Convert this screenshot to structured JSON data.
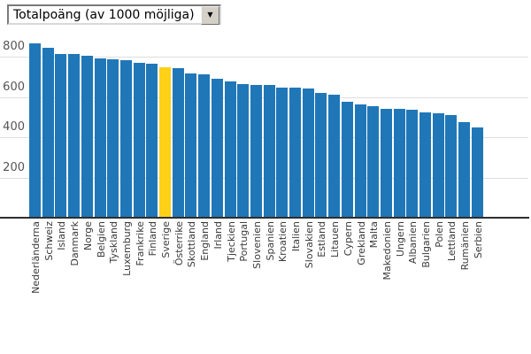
{
  "dropdown": {
    "selected": "Totalpoäng (av 1000 möjliga)",
    "arrow_icon": "▼"
  },
  "chart_data": {
    "type": "bar",
    "title": "",
    "xlabel": "",
    "ylabel": "",
    "categories": [
      "Nederländerna",
      "Schweiz",
      "Island",
      "Danmark",
      "Norge",
      "Belgien",
      "Tyskland",
      "Luxemburg",
      "Frankrike",
      "Finland",
      "Sverige",
      "Österrike",
      "Skottland",
      "England",
      "Irland",
      "Tjeckien",
      "Portugal",
      "Slovenien",
      "Spanien",
      "Kroatien",
      "Italien",
      "Slovakien",
      "Estland",
      "Litauen",
      "Cypern",
      "Grekland",
      "Malta",
      "Makedonien",
      "Ungern",
      "Albanien",
      "Bulgarien",
      "Polen",
      "Lettland",
      "Rumänien",
      "Serbien"
    ],
    "values": [
      870,
      846,
      815,
      813,
      806,
      795,
      787,
      786,
      773,
      766,
      751,
      745,
      716,
      715,
      690,
      678,
      664,
      661,
      659,
      649,
      646,
      643,
      622,
      611,
      579,
      565,
      556,
      541,
      540,
      536,
      526,
      518,
      512,
      474,
      448
    ],
    "highlight_category": "Sverige",
    "colors": {
      "bar": "#2077b8",
      "highlight": "#fcd116",
      "gridline": "#dedede",
      "axis_line": "#2e2e2e",
      "tick_text": "#555555",
      "label_text": "#3a3a3a"
    },
    "yticks": [
      200,
      400,
      600,
      800
    ],
    "ylim": [
      0,
      900
    ],
    "grid": true,
    "legend": "none"
  }
}
